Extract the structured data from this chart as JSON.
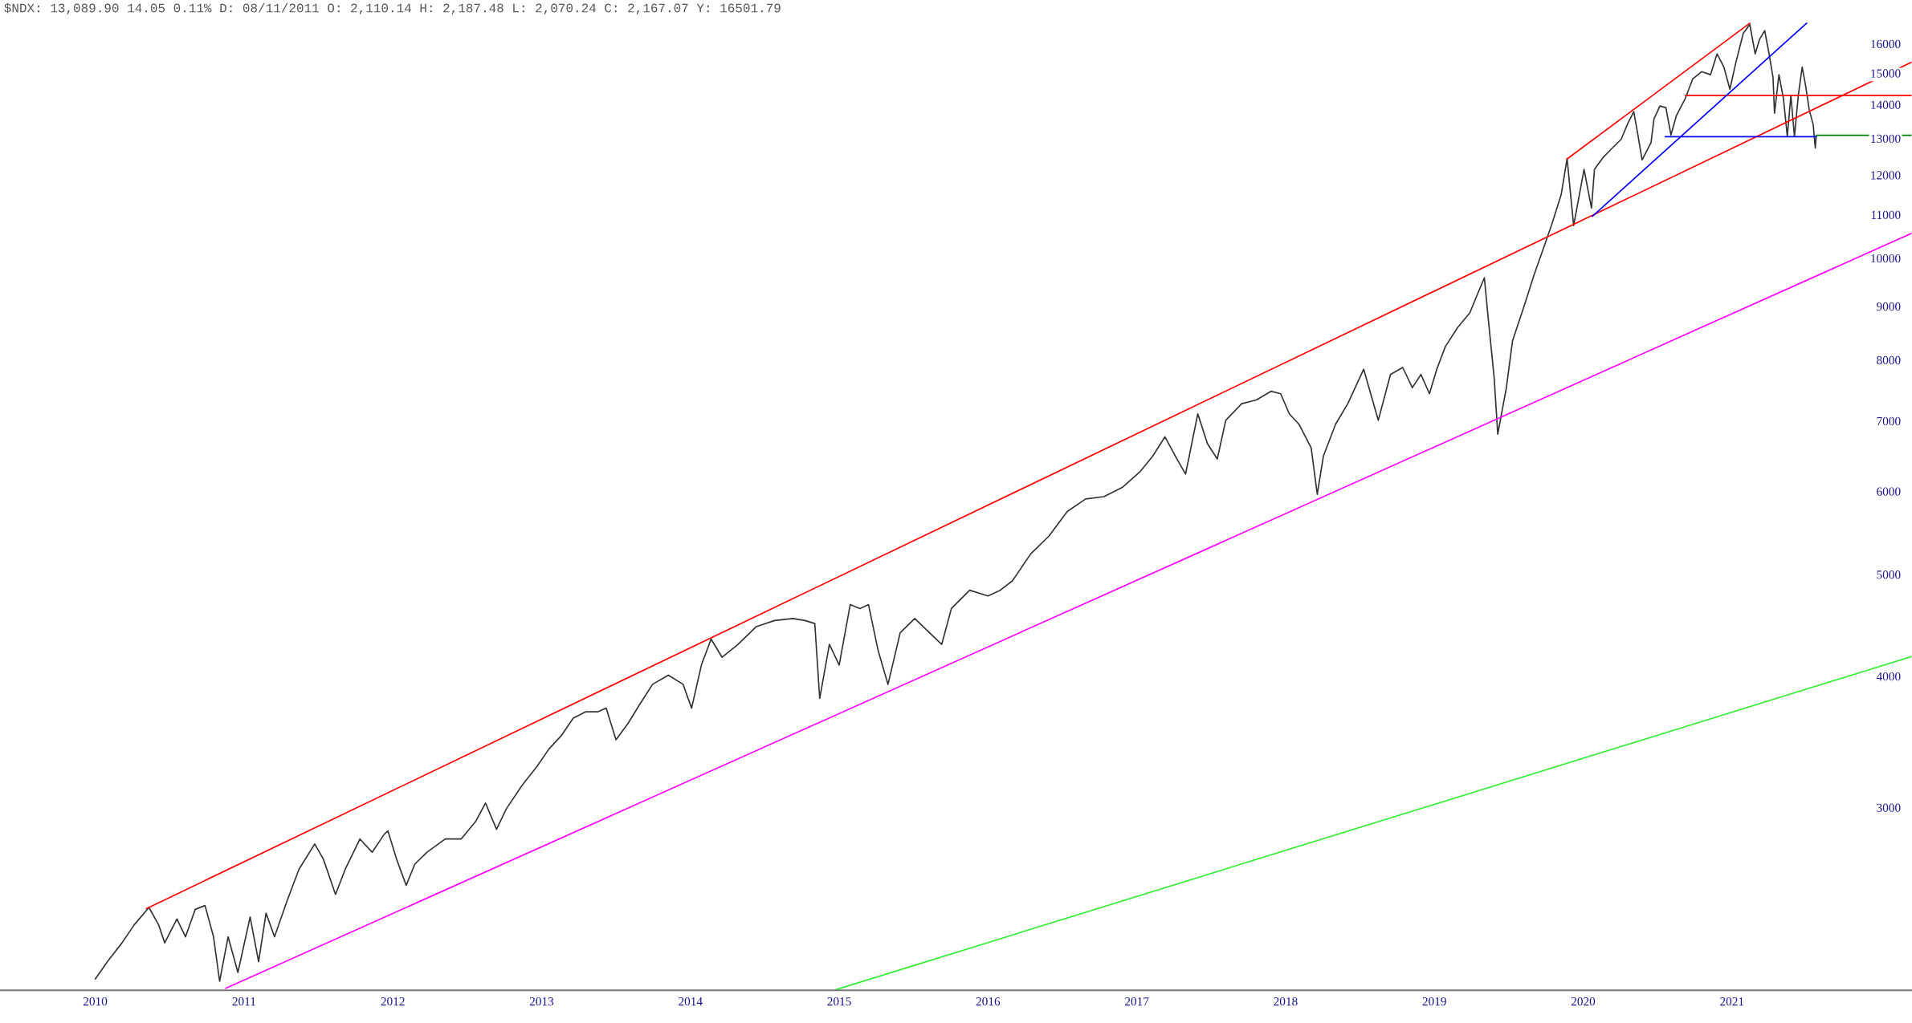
{
  "chart_data": {
    "type": "line",
    "title": "$NDX: 13,089.90 14.05 0.11% D: 08/11/2011 O: 2,110.14 H: 2,187.48 L: 2,070.24 C: 2,167.07 Y: 16501.79",
    "log": true,
    "xlim": [
      2009.36,
      2022.21
    ],
    "xticks": [
      2010,
      2011,
      2012,
      2013,
      2014,
      2015,
      2016,
      2017,
      2018,
      2019,
      2020,
      2021
    ],
    "ylim": [
      2010,
      17610
    ],
    "yticks": [
      3000,
      4000,
      5000,
      6000,
      7000,
      8000,
      9000,
      10000,
      11000,
      12000,
      13000,
      14000,
      15000,
      16000
    ],
    "series": [
      {
        "color": "#333333",
        "x": [
          2010.0,
          2010.082,
          2010.18,
          2010.262,
          2010.361,
          2010.426,
          2010.467,
          2010.549,
          2010.607,
          2010.672,
          2010.738,
          2010.795,
          2010.836,
          2010.893,
          2010.959,
          2011.041,
          2011.098,
          2011.148,
          2011.205,
          2011.287,
          2011.369,
          2011.475,
          2011.533,
          2011.615,
          2011.68,
          2011.779,
          2011.861,
          2011.943,
          2011.967,
          2012.025,
          2012.09,
          2012.148,
          2012.23,
          2012.352,
          2012.459,
          2012.557,
          2012.623,
          2012.697,
          2012.762,
          2012.869,
          2012.967,
          2013.049,
          2013.131,
          2013.213,
          2013.295,
          2013.377,
          2013.434,
          2013.5,
          2013.582,
          2013.664,
          2013.746,
          2013.852,
          2013.951,
          2014.008,
          2014.074,
          2014.139,
          2014.213,
          2014.32,
          2014.443,
          2014.566,
          2014.689,
          2014.77,
          2014.836,
          2014.869,
          2014.934,
          2015.0,
          2015.074,
          2015.139,
          2015.197,
          2015.262,
          2015.328,
          2015.41,
          2015.508,
          2015.607,
          2015.689,
          2015.754,
          2015.877,
          2016.0,
          2016.082,
          2016.164,
          2016.287,
          2016.41,
          2016.533,
          2016.656,
          2016.779,
          2016.902,
          2017.025,
          2017.107,
          2017.189,
          2017.27,
          2017.328,
          2017.41,
          2017.475,
          2017.541,
          2017.598,
          2017.705,
          2017.803,
          2017.902,
          2017.967,
          2018.025,
          2018.09,
          2018.172,
          2018.213,
          2018.254,
          2018.336,
          2018.418,
          2018.525,
          2018.623,
          2018.705,
          2018.787,
          2018.852,
          2018.91,
          2018.967,
          2019.016,
          2019.074,
          2019.156,
          2019.238,
          2019.295,
          2019.336,
          2019.361,
          2019.402,
          2019.426,
          2019.484,
          2019.525,
          2019.607,
          2019.672,
          2019.73,
          2019.787,
          2019.852,
          2019.892,
          2019.936,
          2020.006,
          2020.056,
          2020.076,
          2020.136,
          2020.196,
          2020.256,
          2020.296,
          2020.34,
          2020.366,
          2020.396,
          2020.456,
          2020.476,
          2020.516,
          2020.556,
          2020.59,
          2020.626,
          2020.686,
          2020.736,
          2020.796,
          2020.856,
          2020.9,
          2020.946,
          2020.986,
          2021.026,
          2021.076,
          2021.12,
          2021.156,
          2021.186,
          2021.22,
          2021.246,
          2021.276,
          2021.286,
          2021.316,
          2021.346,
          2021.372,
          2021.396,
          2021.42,
          2021.446,
          2021.472,
          2021.496,
          2021.52,
          2021.546,
          2021.56,
          2021.566
        ],
        "values": [
          2060,
          2140,
          2230,
          2320,
          2410,
          2320,
          2230,
          2350,
          2260,
          2400,
          2420,
          2260,
          2050,
          2260,
          2090,
          2360,
          2140,
          2380,
          2260,
          2440,
          2620,
          2770,
          2680,
          2480,
          2620,
          2800,
          2720,
          2830,
          2850,
          2680,
          2530,
          2650,
          2720,
          2800,
          2800,
          2910,
          3030,
          2860,
          2990,
          3150,
          3280,
          3410,
          3510,
          3650,
          3700,
          3700,
          3730,
          3480,
          3610,
          3770,
          3930,
          4010,
          3930,
          3730,
          4100,
          4340,
          4170,
          4290,
          4460,
          4520,
          4540,
          4520,
          4490,
          3810,
          4290,
          4100,
          4680,
          4640,
          4680,
          4230,
          3930,
          4400,
          4540,
          4400,
          4290,
          4640,
          4830,
          4770,
          4830,
          4930,
          5230,
          5440,
          5740,
          5900,
          5930,
          6050,
          6270,
          6480,
          6760,
          6440,
          6230,
          7110,
          6660,
          6440,
          7010,
          7270,
          7330,
          7470,
          7430,
          7110,
          6950,
          6600,
          5960,
          6480,
          6950,
          7270,
          7840,
          7010,
          7750,
          7870,
          7530,
          7750,
          7430,
          7840,
          8240,
          8590,
          8870,
          9280,
          9580,
          8790,
          7690,
          6800,
          7530,
          8340,
          9040,
          9660,
          10190,
          10750,
          11490,
          12440,
          10740,
          12150,
          11160,
          12150,
          12480,
          12730,
          12980,
          13400,
          13790,
          13150,
          12400,
          12880,
          13570,
          13960,
          13910,
          13100,
          13660,
          14190,
          14810,
          15050,
          14950,
          15650,
          15200,
          14480,
          15350,
          16370,
          16690,
          15650,
          16160,
          16470,
          15750,
          14860,
          13740,
          14950,
          14190,
          13060,
          14290,
          13060,
          14290,
          15200,
          14570,
          13830,
          13400,
          12730,
          13060
        ]
      },
      {
        "color": "#ff0000",
        "x": [
          2010.344,
          2022.21
        ],
        "values": [
          2404,
          15370
        ]
      },
      {
        "color": "#ff0000",
        "x": [
          2019.893,
          2021.12
        ],
        "values": [
          12432,
          16737
        ]
      },
      {
        "color": "#ff0000",
        "x": [
          2020.686,
          2022.21
        ],
        "values": [
          14290,
          14290
        ]
      },
      {
        "color": "#0000ff",
        "x": [
          2020.062,
          2021.502
        ],
        "values": [
          10961,
          16737
        ]
      },
      {
        "color": "#0000ff",
        "x": [
          2020.552,
          2021.566
        ],
        "values": [
          13050,
          13050
        ]
      },
      {
        "color": "#007700",
        "x": [
          2021.566,
          2022.21
        ],
        "values": [
          13090,
          13090
        ]
      },
      {
        "color": "#ff00ff",
        "x": [
          2010.877,
          2022.21
        ],
        "values": [
          2019,
          10565
        ]
      },
      {
        "color": "#33ee33",
        "x": [
          2014.975,
          2022.21
        ],
        "values": [
          2012,
          4178
        ]
      }
    ]
  }
}
